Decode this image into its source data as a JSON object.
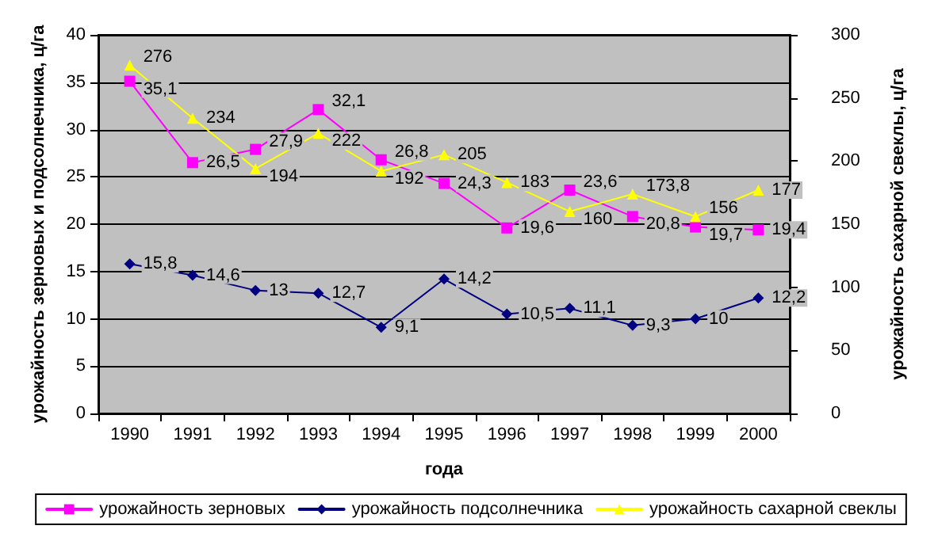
{
  "chart_data": {
    "type": "line",
    "xlabel": "года",
    "ylabel": "урожайность зерновых и подсолнечника, ц/га",
    "y2label": "урожайность сахарной свеклы, ц/га",
    "categories": [
      "1990",
      "1991",
      "1992",
      "1993",
      "1994",
      "1995",
      "1996",
      "1997",
      "1998",
      "1999",
      "2000"
    ],
    "series": [
      {
        "name": "урожайность зерновых",
        "color": "#ff00ff",
        "marker": "square",
        "values": [
          35.1,
          26.5,
          27.9,
          32.1,
          26.8,
          24.3,
          19.6,
          23.6,
          20.8,
          19.7,
          19.4
        ],
        "value_labels": [
          "35,1",
          "26,5",
          "27,9",
          "32,1",
          "26,8",
          "24,3",
          "19,6",
          "23,6",
          "20,8",
          "19,7",
          "19,4"
        ]
      },
      {
        "name": "урожайность подсолнечника",
        "color": "#000080",
        "marker": "diamond",
        "values": [
          15.8,
          14.6,
          13,
          12.7,
          9.1,
          14.2,
          10.5,
          11.1,
          9.3,
          10,
          12.2
        ],
        "value_labels": [
          "15,8",
          "14,6",
          "13",
          "12,7",
          "9,1",
          "14,2",
          "10,5",
          "11,1",
          "9,3",
          "10",
          "12,2"
        ]
      },
      {
        "name": "урожайность сахарной свеклы",
        "color": "#ffff00",
        "marker": "triangle",
        "axis": "y2",
        "values": [
          276,
          234,
          194,
          222,
          192,
          205,
          183,
          160,
          173.8,
          156,
          177
        ],
        "value_labels": [
          "276",
          "234",
          "194",
          "222",
          "192",
          "205",
          "183",
          "160",
          "173,8",
          "156",
          "177"
        ]
      }
    ],
    "ylim": [
      0,
      40
    ],
    "yticks": [
      0,
      5,
      10,
      15,
      20,
      25,
      30,
      35,
      40
    ],
    "y2lim": [
      0,
      300
    ],
    "y2ticks": [
      0,
      50,
      100,
      150,
      200,
      250,
      300
    ],
    "grid": "y",
    "legend": "bottom"
  }
}
